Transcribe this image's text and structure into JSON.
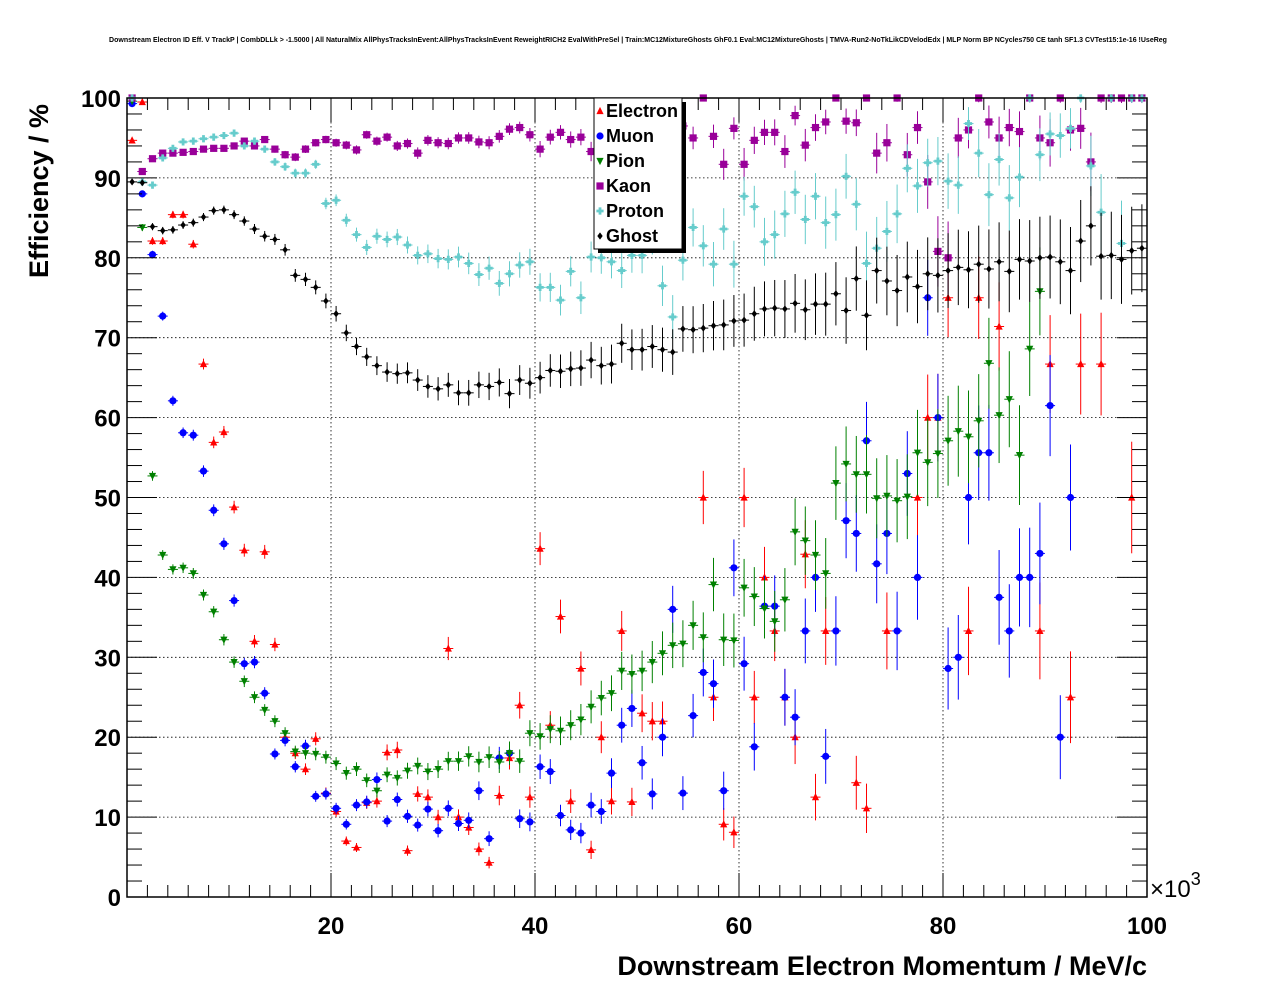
{
  "chart_data": {
    "type": "scatter",
    "title": "Downstream Electron ID Eff. V TrackP | CombDLLk > -1.5000 | All NaturalMix AllPhysTracksInEvent:AllPhysTracksInEvent ReweightRICH2 EvalWithPreSel | Train:MC12MixtureGhosts GhF0.1 Eval:MC12MixtureGhosts | TMVA-Run2-NoTkLikCDVelodEdx | MLP Norm BP NCycles750 CE tanh SF1.3 CVTest15:1e-16 !UseReg",
    "xlabel": "Downstream Electron Momentum / MeV/c",
    "ylabel": "Efficiency / %",
    "x_multiplier": "×10",
    "x_multiplier_exp": "3",
    "xlim": [
      0,
      100000
    ],
    "ylim": [
      0,
      100
    ],
    "x_ticks": [
      20000,
      40000,
      60000,
      80000,
      100000
    ],
    "x_tick_labels": [
      "20",
      "40",
      "60",
      "80",
      "100"
    ],
    "y_ticks": [
      0,
      10,
      20,
      30,
      40,
      50,
      60,
      70,
      80,
      90,
      100
    ],
    "y_tick_labels": [
      "0",
      "10",
      "20",
      "30",
      "40",
      "50",
      "60",
      "70",
      "80",
      "90",
      "100"
    ],
    "grid": true,
    "legend_position": "top-center",
    "x": [
      500,
      1500,
      2500,
      3500,
      4500,
      5500,
      6500,
      7500,
      8500,
      9500,
      10500,
      11500,
      12500,
      13500,
      14500,
      15500,
      16500,
      17500,
      18500,
      19500,
      20500,
      21500,
      22500,
      23500,
      24500,
      25500,
      26500,
      27500,
      28500,
      29500,
      30500,
      31500,
      32500,
      33500,
      34500,
      35500,
      36500,
      37500,
      38500,
      39500,
      40500,
      41500,
      42500,
      43500,
      44500,
      45500,
      46500,
      47500,
      48500,
      49500,
      50500,
      51500,
      52500,
      53500,
      54500,
      55500,
      56500,
      57500,
      58500,
      59500,
      60500,
      61500,
      62500,
      63500,
      64500,
      65500,
      66500,
      67500,
      68500,
      69500,
      70500,
      71500,
      72500,
      73500,
      74500,
      75500,
      76500,
      77500,
      78500,
      79500,
      80500,
      81500,
      82500,
      83500,
      84500,
      85500,
      86500,
      87500,
      88500,
      89500,
      90500,
      91500,
      92500,
      93500,
      94500,
      95500,
      96500,
      97500,
      98500,
      99500
    ],
    "series": [
      {
        "name": "Electron",
        "color": "#ff0000",
        "marker": "triangle-up",
        "values": [
          94.7,
          99.5,
          82.1,
          82.1,
          85.4,
          85.4,
          81.7,
          66.7,
          56.9,
          58.2,
          48.8,
          43.4,
          32.0,
          43.2,
          31.6,
          20.0,
          18.0,
          16.0,
          19.8,
          13.0,
          10.7,
          7.0,
          6.2,
          11.8,
          12.0,
          18.1,
          18.4,
          5.8,
          12.9,
          12.5,
          10.0,
          31.1,
          10.0,
          8.7,
          6.0,
          4.3,
          12.7,
          17.4,
          24.0,
          12.5,
          43.6,
          21.5,
          35.1,
          12.0,
          28.6,
          5.9,
          20.0,
          12.0,
          33.3,
          11.9,
          23.0,
          22.0,
          22.0,
          null,
          null,
          null,
          50.0,
          25.0,
          9.1,
          8.1,
          50.0,
          25.0,
          40.0,
          33.3,
          25.0,
          20.0,
          42.9,
          12.5,
          33.3,
          null,
          null,
          14.3,
          11.1,
          null,
          33.3,
          null,
          null,
          50.0,
          60.0,
          60.0,
          75.0,
          null,
          33.3,
          75.0,
          null,
          71.4,
          null,
          null,
          null,
          33.3,
          66.7,
          null,
          25.0,
          66.7,
          null,
          66.7,
          100.0,
          null,
          50.0,
          100.0
        ]
      },
      {
        "name": "Muon",
        "color": "#0000ff",
        "marker": "circle",
        "values": [
          99.3,
          88.0,
          80.4,
          72.7,
          62.1,
          58.1,
          57.8,
          53.3,
          48.4,
          44.2,
          37.1,
          29.2,
          29.4,
          25.5,
          17.9,
          19.6,
          16.3,
          18.9,
          12.6,
          12.9,
          11.1,
          9.1,
          11.5,
          11.9,
          14.7,
          9.5,
          12.2,
          10.1,
          9.0,
          11.0,
          8.3,
          11.1,
          9.2,
          9.6,
          13.3,
          7.3,
          17.4,
          18.0,
          9.8,
          9.4,
          16.3,
          15.7,
          10.2,
          8.4,
          8.0,
          11.5,
          10.7,
          15.5,
          21.5,
          23.6,
          16.8,
          12.9,
          20.0,
          36.0,
          13.0,
          22.7,
          28.1,
          26.7,
          13.3,
          41.2,
          29.2,
          18.8,
          36.4,
          36.4,
          25.0,
          22.5,
          33.3,
          40.0,
          17.6,
          33.3,
          47.1,
          45.5,
          57.1,
          41.7,
          45.5,
          33.3,
          53.0,
          40.0,
          75.0,
          60.0,
          28.6,
          30.0,
          50.0,
          55.6,
          55.6,
          37.5,
          33.3,
          40.0,
          40.0,
          43.0,
          61.5,
          20.0,
          50.0,
          null,
          null,
          null,
          null,
          null,
          null,
          null
        ]
      },
      {
        "name": "Pion",
        "color": "#008000",
        "marker": "triangle-down",
        "values": [
          99.6,
          83.8,
          52.7,
          42.8,
          41.0,
          41.2,
          40.5,
          37.8,
          35.7,
          32.2,
          29.4,
          27.0,
          25.0,
          23.4,
          22.0,
          20.5,
          18.2,
          18.0,
          17.9,
          17.5,
          16.7,
          15.5,
          16.0,
          14.6,
          13.3,
          15.3,
          14.9,
          15.8,
          16.4,
          15.7,
          16.0,
          17.0,
          17.0,
          17.6,
          16.9,
          17.5,
          16.9,
          18.0,
          17.0,
          20.5,
          20.1,
          21.0,
          20.8,
          21.5,
          22.2,
          23.8,
          24.9,
          25.5,
          28.3,
          27.9,
          28.3,
          29.4,
          30.5,
          31.5,
          31.7,
          34.0,
          32.5,
          39.1,
          32.2,
          32.1,
          38.7,
          37.6,
          36.1,
          34.5,
          37.2,
          45.7,
          44.6,
          42.8,
          40.5,
          51.8,
          54.2,
          52.9,
          52.9,
          49.9,
          50.2,
          49.6,
          50.1,
          55.6,
          54.4,
          55.5,
          57.1,
          58.3,
          57.6,
          59.6,
          66.8,
          60.3,
          62.3,
          55.3,
          68.6,
          75.8,
          null,
          null,
          null,
          null,
          null,
          null,
          null,
          null,
          null,
          null
        ]
      },
      {
        "name": "Kaon",
        "color": "#990099",
        "marker": "square",
        "values": [
          100.0,
          90.8,
          92.4,
          93.1,
          93.1,
          93.2,
          93.3,
          93.6,
          93.7,
          93.7,
          94.0,
          94.6,
          94.0,
          94.8,
          93.6,
          92.9,
          92.6,
          93.6,
          94.4,
          94.8,
          94.4,
          94.1,
          93.5,
          95.4,
          94.6,
          95.1,
          94.0,
          94.3,
          93.1,
          94.7,
          94.4,
          94.3,
          95.0,
          95.0,
          94.5,
          94.4,
          95.2,
          96.1,
          96.3,
          95.4,
          93.6,
          95.1,
          95.7,
          94.8,
          95.1,
          93.3,
          94.6,
          96.1,
          95.5,
          96.2,
          93.2,
          95.1,
          95.7,
          95.0,
          96.5,
          95.0,
          100.0,
          95.2,
          91.7,
          96.2,
          91.7,
          94.7,
          95.7,
          95.7,
          93.3,
          97.8,
          94.1,
          96.3,
          97.0,
          100.0,
          97.1,
          96.9,
          100.0,
          93.1,
          94.4,
          100.0,
          92.9,
          96.3,
          89.5,
          80.8,
          80.0,
          95.0,
          96.0,
          100.0,
          97.0,
          95.0,
          96.3,
          95.8,
          100.0,
          95.0,
          94.4,
          100.0,
          96.0,
          96.2,
          92.0,
          100.0,
          100.0,
          100.0,
          100.0,
          100.0
        ]
      },
      {
        "name": "Proton",
        "color": "#66cccc",
        "marker": "cross",
        "values": [
          100.0,
          89.5,
          89.1,
          92.5,
          93.7,
          94.5,
          94.6,
          94.9,
          95.1,
          95.3,
          95.6,
          94.0,
          94.6,
          93.6,
          92.0,
          91.4,
          90.6,
          90.6,
          91.7,
          86.8,
          87.2,
          84.7,
          82.9,
          81.3,
          82.7,
          82.3,
          82.6,
          81.6,
          80.3,
          80.5,
          79.9,
          79.8,
          80.1,
          79.3,
          77.9,
          78.7,
          76.8,
          78.0,
          79.1,
          79.5,
          76.3,
          76.3,
          74.7,
          78.3,
          75.0,
          80.1,
          80.0,
          79.5,
          78.4,
          80.3,
          80.3,
          82.6,
          76.5,
          72.6,
          79.7,
          83.8,
          81.5,
          79.2,
          83.6,
          79.2,
          87.7,
          86.4,
          82.0,
          82.9,
          85.5,
          88.2,
          84.8,
          87.7,
          84.4,
          85.4,
          90.2,
          86.7,
          79.3,
          81.2,
          83.3,
          85.5,
          91.2,
          89.0,
          91.9,
          92.1,
          89.6,
          89.1,
          96.8,
          93.1,
          87.9,
          92.3,
          87.5,
          90.1,
          100.0,
          92.9,
          95.5,
          95.3,
          96.2,
          100.0,
          91.5,
          85.7,
          100.0,
          81.8,
          100.0,
          100.0
        ]
      },
      {
        "name": "Ghost",
        "color": "#000000",
        "marker": "diamond",
        "values": [
          89.5,
          89.4,
          83.9,
          83.4,
          83.5,
          84.1,
          84.4,
          85.1,
          85.9,
          86.0,
          85.4,
          84.6,
          83.6,
          82.7,
          82.3,
          81.0,
          77.8,
          77.3,
          76.3,
          74.6,
          73.0,
          70.6,
          68.9,
          67.6,
          66.5,
          65.7,
          65.5,
          65.6,
          64.7,
          63.9,
          63.6,
          64.1,
          63.1,
          63.1,
          64.1,
          63.9,
          64.4,
          63.0,
          64.7,
          64.3,
          65.0,
          65.9,
          65.8,
          66.1,
          66.2,
          67.2,
          66.5,
          66.7,
          69.3,
          68.5,
          68.5,
          68.9,
          68.5,
          68.2,
          71.1,
          71.0,
          71.2,
          71.5,
          71.6,
          72.1,
          72.2,
          73.0,
          73.6,
          73.7,
          73.6,
          74.3,
          73.5,
          74.2,
          74.2,
          75.5,
          73.4,
          77.4,
          72.8,
          78.4,
          77.1,
          75.9,
          77.6,
          76.4,
          78.0,
          77.8,
          78.4,
          78.8,
          78.5,
          79.2,
          78.6,
          79.5,
          78.3,
          79.8,
          79.6,
          80.0,
          80.1,
          79.5,
          78.4,
          82.1,
          84.0,
          80.2,
          80.3,
          79.8,
          80.9,
          81.2
        ]
      }
    ]
  }
}
